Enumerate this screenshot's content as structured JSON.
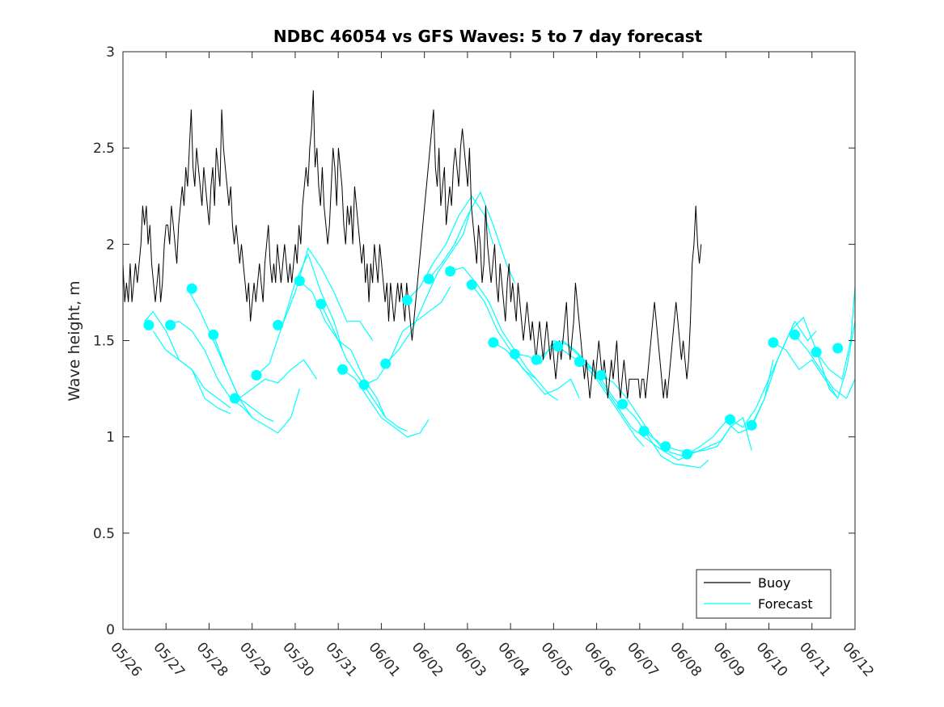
{
  "chart_data": {
    "type": "line",
    "title": "NDBC 46054 vs GFS Waves: 5 to 7 day forecast",
    "xlabel": "",
    "ylabel": "Wave height, m",
    "xlim": [
      0,
      17
    ],
    "ylim": [
      0,
      3
    ],
    "x_tick_labels": [
      "05/26",
      "05/27",
      "05/28",
      "05/29",
      "05/30",
      "05/31",
      "06/01",
      "06/02",
      "06/03",
      "06/04",
      "06/05",
      "06/06",
      "06/07",
      "06/08",
      "06/09",
      "06/10",
      "06/11",
      "06/12"
    ],
    "y_ticks": [
      0,
      0.5,
      1,
      1.5,
      2,
      2.5,
      3
    ],
    "y_tick_labels": [
      "0",
      "0.5",
      "1",
      "1.5",
      "2",
      "2.5",
      "3"
    ],
    "grid": false,
    "legend": {
      "placement": "bottom-right",
      "entries": [
        "Buoy",
        "Forecast"
      ]
    },
    "colors": {
      "buoy": "#000000",
      "forecast": "#00ffff"
    },
    "buoy_x_step_days": 0.0417,
    "buoy_values": [
      1.9,
      1.7,
      1.8,
      1.7,
      1.9,
      1.7,
      1.8,
      1.9,
      1.8,
      1.9,
      2.0,
      2.2,
      2.1,
      2.2,
      2.0,
      2.1,
      1.9,
      1.8,
      1.7,
      1.8,
      1.9,
      1.7,
      1.8,
      2.0,
      2.1,
      2.1,
      2.0,
      2.2,
      2.1,
      2.0,
      1.9,
      2.1,
      2.2,
      2.3,
      2.2,
      2.4,
      2.3,
      2.5,
      2.7,
      2.4,
      2.3,
      2.5,
      2.4,
      2.3,
      2.2,
      2.4,
      2.3,
      2.2,
      2.1,
      2.3,
      2.4,
      2.2,
      2.5,
      2.4,
      2.3,
      2.7,
      2.5,
      2.4,
      2.3,
      2.2,
      2.3,
      2.1,
      2.0,
      2.1,
      2.0,
      1.9,
      2.0,
      1.9,
      1.8,
      1.7,
      1.8,
      1.6,
      1.7,
      1.8,
      1.7,
      1.8,
      1.9,
      1.8,
      1.7,
      1.9,
      2.0,
      2.1,
      1.9,
      1.8,
      1.9,
      1.8,
      2.0,
      1.9,
      1.8,
      1.9,
      2.0,
      1.9,
      1.8,
      1.9,
      1.8,
      1.9,
      2.0,
      1.9,
      2.1,
      2.0,
      2.2,
      2.3,
      2.4,
      2.3,
      2.5,
      2.6,
      2.8,
      2.4,
      2.5,
      2.3,
      2.2,
      2.4,
      2.2,
      2.1,
      2.0,
      2.1,
      2.3,
      2.5,
      2.4,
      2.2,
      2.5,
      2.4,
      2.3,
      2.1,
      2.0,
      2.2,
      2.1,
      2.2,
      2.0,
      2.3,
      2.2,
      2.1,
      2.0,
      1.9,
      2.0,
      1.8,
      1.9,
      1.7,
      1.9,
      1.8,
      2.0,
      1.9,
      1.8,
      2.0,
      1.9,
      1.8,
      1.7,
      1.8,
      1.6,
      1.8,
      1.7,
      1.6,
      1.7,
      1.8,
      1.7,
      1.8,
      1.7,
      1.6,
      1.8,
      1.7,
      1.6,
      1.5,
      1.6,
      1.7,
      1.8,
      1.9,
      2.0,
      2.1,
      2.2,
      2.3,
      2.4,
      2.5,
      2.6,
      2.7,
      2.4,
      2.3,
      2.5,
      2.2,
      2.3,
      2.4,
      2.1,
      2.2,
      2.3,
      2.2,
      2.4,
      2.5,
      2.4,
      2.3,
      2.5,
      2.6,
      2.5,
      2.4,
      2.3,
      2.5,
      2.2,
      2.1,
      2.0,
      1.9,
      2.1,
      2.0,
      1.8,
      1.9,
      2.2,
      2.0,
      1.9,
      1.8,
      1.9,
      2.0,
      1.8,
      1.7,
      1.9,
      1.8,
      1.7,
      1.6,
      1.8,
      1.9,
      1.7,
      1.8,
      1.7,
      1.6,
      1.8,
      1.7,
      1.6,
      1.5,
      1.6,
      1.7,
      1.6,
      1.5,
      1.6,
      1.5,
      1.4,
      1.5,
      1.6,
      1.5,
      1.4,
      1.5,
      1.6,
      1.5,
      1.4,
      1.5,
      1.4,
      1.3,
      1.4,
      1.5,
      1.4,
      1.5,
      1.6,
      1.7,
      1.5,
      1.4,
      1.5,
      1.6,
      1.8,
      1.7,
      1.6,
      1.5,
      1.4,
      1.3,
      1.4,
      1.3,
      1.2,
      1.3,
      1.4,
      1.3,
      1.4,
      1.5,
      1.4,
      1.3,
      1.4,
      1.3,
      1.2,
      1.3,
      1.4,
      1.3,
      1.4,
      1.5,
      1.3,
      1.2,
      1.3,
      1.4,
      1.3,
      1.2,
      1.3,
      1.3,
      1.3,
      1.3,
      1.3,
      1.3,
      1.2,
      1.3,
      1.3,
      1.2,
      1.3,
      1.4,
      1.5,
      1.6,
      1.7,
      1.6,
      1.5,
      1.4,
      1.3,
      1.2,
      1.3,
      1.2,
      1.3,
      1.4,
      1.5,
      1.6,
      1.7,
      1.6,
      1.5,
      1.4,
      1.5,
      1.4,
      1.3,
      1.4,
      1.6,
      1.9,
      2.0,
      2.2,
      2.0,
      1.9,
      2.0
    ],
    "forecast_segments": [
      [
        [
          0.5,
          1.6
        ],
        [
          0.7,
          1.65
        ],
        [
          1.0,
          1.55
        ],
        [
          1.3,
          1.4
        ],
        [
          1.6,
          1.35
        ],
        [
          1.9,
          1.25
        ],
        [
          2.2,
          1.2
        ],
        [
          2.5,
          1.15
        ]
      ],
      [
        [
          0.7,
          1.55
        ],
        [
          1.0,
          1.45
        ],
        [
          1.3,
          1.4
        ],
        [
          1.6,
          1.35
        ],
        [
          1.9,
          1.2
        ],
        [
          2.2,
          1.15
        ],
        [
          2.5,
          1.12
        ]
      ],
      [
        [
          1.0,
          1.58
        ],
        [
          1.3,
          1.6
        ],
        [
          1.6,
          1.55
        ],
        [
          1.9,
          1.45
        ],
        [
          2.2,
          1.3
        ],
        [
          2.5,
          1.2
        ],
        [
          2.8,
          1.15
        ],
        [
          3.0,
          1.1
        ]
      ],
      [
        [
          1.5,
          1.77
        ],
        [
          1.8,
          1.65
        ],
        [
          2.1,
          1.5
        ],
        [
          2.4,
          1.35
        ],
        [
          2.7,
          1.2
        ],
        [
          3.0,
          1.15
        ],
        [
          3.3,
          1.1
        ],
        [
          3.5,
          1.08
        ]
      ],
      [
        [
          2.1,
          1.53
        ],
        [
          2.4,
          1.35
        ],
        [
          2.7,
          1.2
        ],
        [
          3.0,
          1.1
        ],
        [
          3.3,
          1.06
        ],
        [
          3.6,
          1.02
        ],
        [
          3.9,
          1.1
        ],
        [
          4.1,
          1.25
        ]
      ],
      [
        [
          2.7,
          1.2
        ],
        [
          3.0,
          1.25
        ],
        [
          3.3,
          1.3
        ],
        [
          3.6,
          1.28
        ],
        [
          3.9,
          1.35
        ],
        [
          4.2,
          1.4
        ],
        [
          4.5,
          1.3
        ]
      ],
      [
        [
          3.1,
          1.32
        ],
        [
          3.4,
          1.38
        ],
        [
          3.7,
          1.58
        ],
        [
          4.0,
          1.8
        ],
        [
          4.3,
          1.95
        ],
        [
          4.6,
          1.75
        ],
        [
          4.9,
          1.6
        ],
        [
          5.1,
          1.45
        ]
      ],
      [
        [
          3.7,
          1.58
        ],
        [
          4.0,
          1.75
        ],
        [
          4.3,
          1.98
        ],
        [
          4.6,
          1.88
        ],
        [
          4.9,
          1.75
        ],
        [
          5.2,
          1.6
        ],
        [
          5.5,
          1.6
        ],
        [
          5.8,
          1.5
        ]
      ],
      [
        [
          4.1,
          1.81
        ],
        [
          4.4,
          1.75
        ],
        [
          4.7,
          1.6
        ],
        [
          5.0,
          1.5
        ],
        [
          5.3,
          1.45
        ],
        [
          5.6,
          1.3
        ],
        [
          5.9,
          1.2
        ],
        [
          6.1,
          1.1
        ]
      ],
      [
        [
          4.6,
          1.69
        ],
        [
          4.9,
          1.55
        ],
        [
          5.2,
          1.4
        ],
        [
          5.5,
          1.3
        ],
        [
          5.8,
          1.2
        ],
        [
          6.1,
          1.1
        ],
        [
          6.4,
          1.05
        ],
        [
          6.6,
          1.03
        ]
      ],
      [
        [
          5.1,
          1.35
        ],
        [
          5.4,
          1.3
        ],
        [
          5.7,
          1.2
        ],
        [
          6.0,
          1.1
        ],
        [
          6.3,
          1.05
        ],
        [
          6.6,
          1.0
        ],
        [
          6.9,
          1.02
        ],
        [
          7.1,
          1.09
        ]
      ],
      [
        [
          5.6,
          1.27
        ],
        [
          5.9,
          1.3
        ],
        [
          6.2,
          1.4
        ],
        [
          6.5,
          1.55
        ],
        [
          6.8,
          1.6
        ],
        [
          7.1,
          1.65
        ],
        [
          7.4,
          1.7
        ],
        [
          7.6,
          1.78
        ]
      ],
      [
        [
          6.1,
          1.38
        ],
        [
          6.4,
          1.45
        ],
        [
          6.7,
          1.55
        ],
        [
          7.0,
          1.7
        ],
        [
          7.3,
          1.85
        ],
        [
          7.6,
          1.95
        ],
        [
          7.9,
          2.05
        ],
        [
          8.1,
          2.2
        ]
      ],
      [
        [
          6.6,
          1.71
        ],
        [
          6.9,
          1.78
        ],
        [
          7.2,
          1.9
        ],
        [
          7.5,
          2.0
        ],
        [
          7.8,
          2.15
        ],
        [
          8.1,
          2.25
        ],
        [
          8.4,
          2.15
        ],
        [
          8.6,
          2.0
        ]
      ],
      [
        [
          7.1,
          1.82
        ],
        [
          7.4,
          1.9
        ],
        [
          7.7,
          2.0
        ],
        [
          8.0,
          2.15
        ],
        [
          8.3,
          2.27
        ],
        [
          8.6,
          2.1
        ],
        [
          8.9,
          1.9
        ],
        [
          9.1,
          1.8
        ]
      ],
      [
        [
          7.6,
          1.86
        ],
        [
          7.9,
          1.88
        ],
        [
          8.2,
          1.8
        ],
        [
          8.5,
          1.7
        ],
        [
          8.8,
          1.55
        ],
        [
          9.1,
          1.45
        ],
        [
          9.4,
          1.35
        ],
        [
          9.6,
          1.3
        ]
      ],
      [
        [
          8.1,
          1.79
        ],
        [
          8.4,
          1.7
        ],
        [
          8.7,
          1.55
        ],
        [
          9.0,
          1.45
        ],
        [
          9.3,
          1.35
        ],
        [
          9.6,
          1.3
        ],
        [
          9.9,
          1.22
        ],
        [
          10.1,
          1.19
        ]
      ],
      [
        [
          8.6,
          1.49
        ],
        [
          8.9,
          1.45
        ],
        [
          9.2,
          1.38
        ],
        [
          9.5,
          1.3
        ],
        [
          9.8,
          1.22
        ],
        [
          10.1,
          1.25
        ],
        [
          10.4,
          1.3
        ],
        [
          10.6,
          1.2
        ]
      ],
      [
        [
          9.1,
          1.43
        ],
        [
          9.4,
          1.42
        ],
        [
          9.7,
          1.38
        ],
        [
          10.0,
          1.5
        ],
        [
          10.3,
          1.48
        ],
        [
          10.6,
          1.42
        ],
        [
          10.9,
          1.35
        ],
        [
          11.1,
          1.3
        ]
      ],
      [
        [
          9.6,
          1.4
        ],
        [
          9.9,
          1.45
        ],
        [
          10.2,
          1.5
        ],
        [
          10.5,
          1.45
        ],
        [
          10.8,
          1.38
        ],
        [
          11.1,
          1.3
        ],
        [
          11.4,
          1.2
        ],
        [
          11.6,
          1.15
        ]
      ],
      [
        [
          10.1,
          1.47
        ],
        [
          10.4,
          1.42
        ],
        [
          10.7,
          1.38
        ],
        [
          11.0,
          1.3
        ],
        [
          11.3,
          1.2
        ],
        [
          11.6,
          1.1
        ],
        [
          11.9,
          1.0
        ],
        [
          12.1,
          0.95
        ]
      ],
      [
        [
          10.6,
          1.39
        ],
        [
          10.9,
          1.35
        ],
        [
          11.2,
          1.25
        ],
        [
          11.5,
          1.15
        ],
        [
          11.8,
          1.05
        ],
        [
          12.1,
          1.0
        ],
        [
          12.4,
          0.95
        ],
        [
          12.6,
          0.92
        ]
      ],
      [
        [
          11.1,
          1.32
        ],
        [
          11.4,
          1.28
        ],
        [
          11.7,
          1.2
        ],
        [
          12.0,
          1.1
        ],
        [
          12.3,
          1.0
        ],
        [
          12.6,
          0.92
        ],
        [
          12.9,
          0.88
        ],
        [
          13.1,
          0.9
        ]
      ],
      [
        [
          11.6,
          1.17
        ],
        [
          11.9,
          1.1
        ],
        [
          12.2,
          1.0
        ],
        [
          12.5,
          0.9
        ],
        [
          12.8,
          0.86
        ],
        [
          13.1,
          0.85
        ],
        [
          13.4,
          0.84
        ],
        [
          13.6,
          0.88
        ]
      ],
      [
        [
          12.1,
          1.03
        ],
        [
          12.4,
          0.98
        ],
        [
          12.7,
          0.92
        ],
        [
          13.0,
          0.9
        ],
        [
          13.3,
          0.92
        ],
        [
          13.6,
          0.95
        ],
        [
          13.9,
          0.98
        ],
        [
          14.1,
          1.05
        ]
      ],
      [
        [
          12.6,
          0.95
        ],
        [
          12.9,
          0.93
        ],
        [
          13.2,
          0.92
        ],
        [
          13.5,
          0.93
        ],
        [
          13.8,
          0.95
        ],
        [
          14.1,
          1.05
        ],
        [
          14.4,
          1.1
        ],
        [
          14.6,
          0.93
        ]
      ],
      [
        [
          13.1,
          0.91
        ],
        [
          13.4,
          0.95
        ],
        [
          13.7,
          1.0
        ],
        [
          14.0,
          1.08
        ],
        [
          14.3,
          1.02
        ],
        [
          14.6,
          1.05
        ],
        [
          14.9,
          1.2
        ],
        [
          15.1,
          1.4
        ]
      ],
      [
        [
          14.1,
          1.09
        ],
        [
          14.4,
          1.05
        ],
        [
          14.7,
          1.15
        ],
        [
          15.0,
          1.3
        ],
        [
          15.3,
          1.45
        ],
        [
          15.6,
          1.6
        ],
        [
          15.9,
          1.5
        ],
        [
          16.1,
          1.55
        ]
      ],
      [
        [
          14.6,
          1.06
        ],
        [
          14.9,
          1.2
        ],
        [
          15.2,
          1.4
        ],
        [
          15.5,
          1.55
        ],
        [
          15.8,
          1.62
        ],
        [
          16.1,
          1.45
        ],
        [
          16.4,
          1.25
        ],
        [
          16.6,
          1.2
        ]
      ],
      [
        [
          15.1,
          1.49
        ],
        [
          15.4,
          1.45
        ],
        [
          15.7,
          1.35
        ],
        [
          16.0,
          1.4
        ],
        [
          16.3,
          1.3
        ],
        [
          16.6,
          1.2
        ],
        [
          16.8,
          1.35
        ],
        [
          17.0,
          1.6
        ]
      ],
      [
        [
          15.6,
          1.53
        ],
        [
          15.9,
          1.45
        ],
        [
          16.2,
          1.35
        ],
        [
          16.5,
          1.25
        ],
        [
          16.8,
          1.2
        ],
        [
          17.0,
          1.3
        ]
      ],
      [
        [
          16.1,
          1.44
        ],
        [
          16.4,
          1.35
        ],
        [
          16.7,
          1.3
        ],
        [
          16.9,
          1.5
        ],
        [
          17.0,
          1.78
        ]
      ]
    ],
    "forecast_markers": [
      [
        0.6,
        1.58
      ],
      [
        1.1,
        1.58
      ],
      [
        1.6,
        1.77
      ],
      [
        2.1,
        1.53
      ],
      [
        2.6,
        1.2
      ],
      [
        3.1,
        1.32
      ],
      [
        3.6,
        1.58
      ],
      [
        4.1,
        1.81
      ],
      [
        4.6,
        1.69
      ],
      [
        5.1,
        1.35
      ],
      [
        5.6,
        1.27
      ],
      [
        6.1,
        1.38
      ],
      [
        6.6,
        1.71
      ],
      [
        7.1,
        1.82
      ],
      [
        7.6,
        1.86
      ],
      [
        8.1,
        1.79
      ],
      [
        8.6,
        1.49
      ],
      [
        9.1,
        1.43
      ],
      [
        9.6,
        1.4
      ],
      [
        10.1,
        1.47
      ],
      [
        10.6,
        1.39
      ],
      [
        11.1,
        1.32
      ],
      [
        11.6,
        1.17
      ],
      [
        12.1,
        1.03
      ],
      [
        12.6,
        0.95
      ],
      [
        13.1,
        0.91
      ],
      [
        14.1,
        1.09
      ],
      [
        14.6,
        1.06
      ],
      [
        15.1,
        1.49
      ],
      [
        15.6,
        1.53
      ],
      [
        16.1,
        1.44
      ],
      [
        16.6,
        1.46
      ]
    ]
  }
}
